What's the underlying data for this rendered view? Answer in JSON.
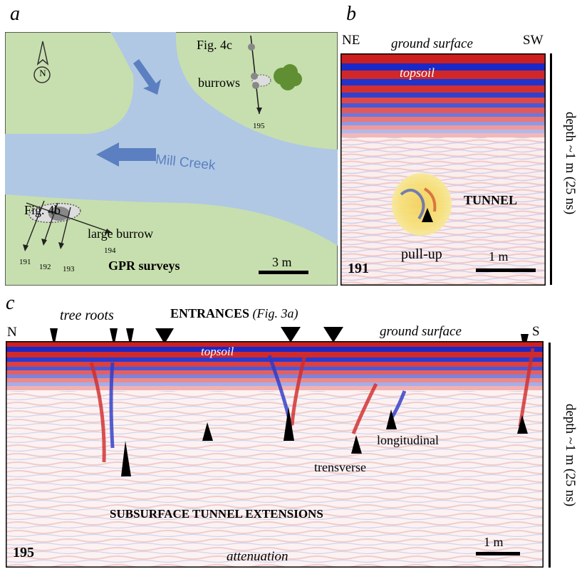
{
  "panel_a": {
    "letter": "a",
    "fig4c": "Fig. 4c",
    "burrows": "burrows",
    "line195": "195",
    "creek": "Mill Creek",
    "fig4b": "Fig. 4b",
    "large_burrow": "large burrow",
    "line191": "191",
    "line192": "192",
    "line193": "193",
    "line194": "194",
    "surveys": "GPR surveys",
    "scale": "3 m",
    "north": "N",
    "colors": {
      "land": "#c7dfae",
      "water": "#b0c8e4",
      "arrow": "#5b7fc0",
      "tree": "#5f8f32"
    }
  },
  "panel_b": {
    "letter": "b",
    "ne": "NE",
    "sw": "SW",
    "ground": "ground surface",
    "topsoil": "topsoil",
    "tunnel": "TUNNEL",
    "pullup": "pull-up",
    "line": "191",
    "scale": "1 m",
    "depth": "depth ~1 m (25 ns)"
  },
  "panel_c": {
    "letter": "c",
    "tree_roots": "tree roots",
    "entrances": "ENTRANCES",
    "entrances_ref": "(Fig. 3a)",
    "n": "N",
    "s": "S",
    "ground": "ground surface",
    "topsoil": "topsoil",
    "trensverse": "trensverse",
    "longitudinal": "longitudinal",
    "extensions": "SUBSURFACE TUNNEL EXTENSIONS",
    "line": "195",
    "attenuation": "attenuation",
    "scale": "1 m",
    "depth": "depth ~1 m (25 ns)"
  }
}
